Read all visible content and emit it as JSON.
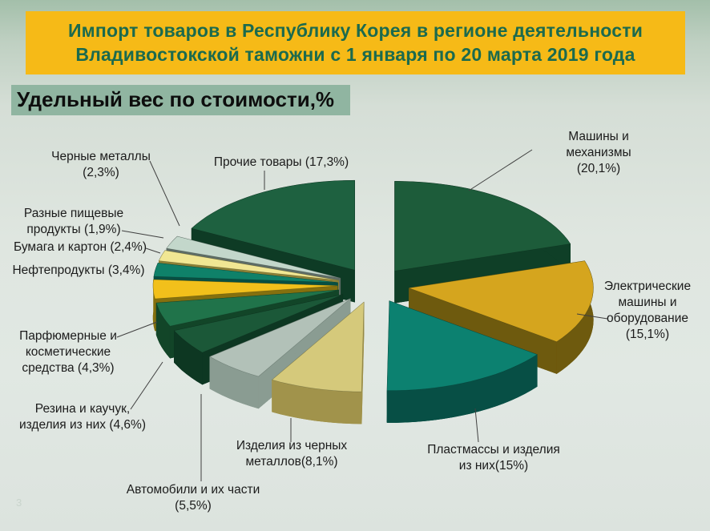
{
  "slide": {
    "title_line1": "Импорт товаров в Республику Корея в регионе деятельности",
    "title_line2": "Владивостокской таможни с 1 января по 20 марта 2019 года",
    "page_number": "3",
    "colors": {
      "title_bg": "#f6ba17",
      "title_text": "#1b6a4e",
      "subtitle_bg": "#90b5a1",
      "background": "#dfe6e0"
    }
  },
  "chart_data": {
    "type": "pie",
    "style": "3d-exploded",
    "title": "Удельный вес по стоимости,%",
    "unit": "%",
    "legend_position": "callout-labels",
    "start_angle_deg": 0,
    "direction": "clockwise",
    "slices": [
      {
        "name": "Машины и механизмы",
        "value": 20.1,
        "label": "Машины и механизмы\n(20,1%)",
        "color": "#1d5c3a",
        "side_color": "#0f3f27"
      },
      {
        "name": "Электрические машины и оборудование",
        "value": 15.1,
        "label": "Электрические\nмашины и\nоборудование\n(15,1%)",
        "color": "#d5a51e",
        "side_color": "#6e5a0e"
      },
      {
        "name": "Пластмассы и изделия из них",
        "value": 15,
        "label": "Пластмассы и изделия\nиз них(15%)",
        "color": "#0c8170",
        "side_color": "#074f45"
      },
      {
        "name": "Изделия из черных металлов",
        "value": 8.1,
        "label": "Изделия из черных\nметаллов(8,1%)",
        "color": "#d5c97b",
        "side_color": "#a1934b"
      },
      {
        "name": "Автомобили и их части",
        "value": 5.5,
        "label": "Автомобили и их части\n(5,5%)",
        "color": "#b2c1b8",
        "side_color": "#8a9c92"
      },
      {
        "name": "Резина и каучук, изделия из них",
        "value": 4.6,
        "label": "Резина и каучук,\nизделия из них (4,6%)",
        "color": "#1b5838",
        "side_color": "#0d3722"
      },
      {
        "name": "Парфюмерные и косметические средства",
        "value": 4.3,
        "label": "Парфюмерные и\nкосметические\nсредства (4,3%)",
        "color": "#20734a",
        "side_color": "#124528"
      },
      {
        "name": "Нефтепродукты",
        "value": 3.4,
        "label": "Нефтепродукты (3,4%)",
        "color": "#f2c01b",
        "side_color": "#85700e"
      },
      {
        "name": "Бумага и картон",
        "value": 2.4,
        "label": "Бумага и картон (2,4%)",
        "color": "#0f8169",
        "side_color": "#084f42"
      },
      {
        "name": "Разные пищевые продукты",
        "value": 1.9,
        "label": "Разные пищевые\nпродукты (1,9%)",
        "color": "#f1e793",
        "side_color": "#8d8136"
      },
      {
        "name": "Черные металлы",
        "value": 2.3,
        "label": "Черные металлы\n(2,3%)",
        "color": "#c3d7cb",
        "side_color": "#5e6d66"
      },
      {
        "name": "Прочие товары",
        "value": 17.3,
        "label": "Прочие товары (17,3%)",
        "color": "#1e6140",
        "side_color": "#0e3b25"
      }
    ]
  }
}
